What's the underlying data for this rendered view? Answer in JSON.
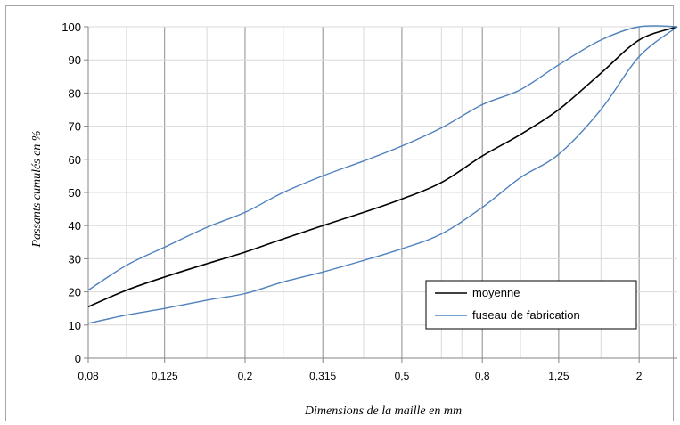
{
  "chart_data": {
    "type": "line",
    "title": "",
    "xlabel": "Dimensions de la maille en mm",
    "ylabel": "Passants cumulés en %",
    "x_scale": "log",
    "xlim": [
      0.08,
      2.5
    ],
    "ylim": [
      0,
      100
    ],
    "x_tick_labels": [
      "0,08",
      "0,125",
      "0,2",
      "0,315",
      "0,5",
      "0,8",
      "1,25",
      "2"
    ],
    "y_tick_labels": [
      "0",
      "10",
      "20",
      "30",
      "40",
      "50",
      "60",
      "70",
      "80",
      "90",
      "100"
    ],
    "grid": true,
    "legend_position": "bottom-right",
    "series": [
      {
        "name": "moyenne",
        "color": "#000000",
        "x": [
          0.08,
          0.1,
          0.125,
          0.16,
          0.2,
          0.25,
          0.315,
          0.4,
          0.5,
          0.63,
          0.8,
          1.0,
          1.25,
          1.6,
          2.0,
          2.5
        ],
        "y": [
          15.5,
          20.5,
          24.5,
          28.5,
          32,
          36,
          40,
          44,
          48,
          53,
          61,
          67.5,
          75,
          86,
          96,
          100
        ]
      },
      {
        "name": "fuseau de fabrication",
        "color": "#4f81bd",
        "x": [
          0.08,
          0.1,
          0.125,
          0.16,
          0.2,
          0.25,
          0.315,
          0.4,
          0.5,
          0.63,
          0.8,
          1.0,
          1.25,
          1.6,
          2.0,
          2.5
        ],
        "y": [
          20.5,
          28,
          33.5,
          39.5,
          44,
          50,
          55,
          59.5,
          64,
          69.5,
          76.5,
          81,
          88.5,
          96,
          100,
          100
        ]
      },
      {
        "name": "",
        "color": "#4f81bd",
        "x": [
          0.08,
          0.1,
          0.125,
          0.16,
          0.2,
          0.25,
          0.315,
          0.4,
          0.5,
          0.63,
          0.8,
          1.0,
          1.25,
          1.6,
          2.0,
          2.5
        ],
        "y": [
          10.5,
          13,
          15,
          17.5,
          19.5,
          23,
          26,
          29.5,
          33,
          37.5,
          45.5,
          54.5,
          61.5,
          75,
          91,
          100
        ]
      }
    ],
    "legend": [
      {
        "label": "moyenne",
        "color": "#000000"
      },
      {
        "label": "fuseau de fabrication",
        "color": "#4f81bd"
      }
    ]
  }
}
